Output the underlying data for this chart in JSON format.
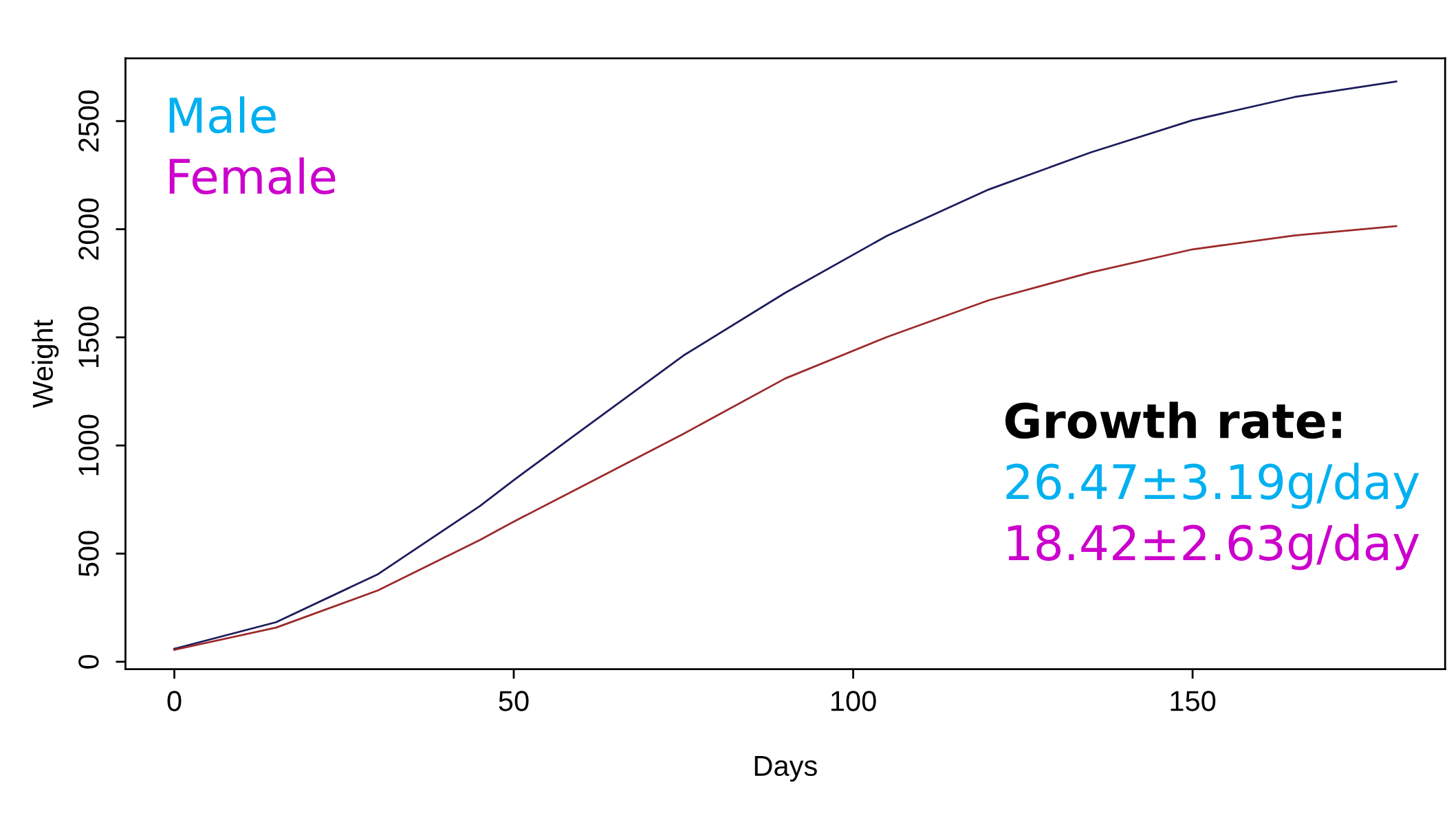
{
  "chart_data": {
    "type": "line",
    "xlabel": "Days",
    "ylabel": "Weight",
    "x": [
      0,
      15,
      30,
      45,
      50,
      60,
      75,
      90,
      105,
      120,
      135,
      150,
      165,
      180
    ],
    "series": [
      {
        "color": "#1c1c5c",
        "values": [
          60,
          183,
          405,
          720,
          840,
          1071,
          1416,
          1706,
          1970,
          2184,
          2355,
          2504,
          2611,
          2683
        ]
      },
      {
        "color": "#9c2a2a",
        "values": [
          55,
          158,
          330,
          563,
          648,
          810,
          1054,
          1310,
          1502,
          1672,
          1800,
          1907,
          1971,
          2014
        ]
      }
    ],
    "xlim": [
      -7.2,
      187.2
    ],
    "ylim": [
      -34,
      2790
    ],
    "xticks": [
      0,
      50,
      100,
      150
    ],
    "yticks": [
      0,
      500,
      1000,
      1500,
      2000,
      2500
    ],
    "grid": false,
    "legend": false,
    "marker": "none",
    "line_style": "solid",
    "annotations": [
      "Male",
      "Female",
      "Growth rate:",
      "26.47±3.19g/day",
      "18.42±2.63g/day"
    ]
  }
}
